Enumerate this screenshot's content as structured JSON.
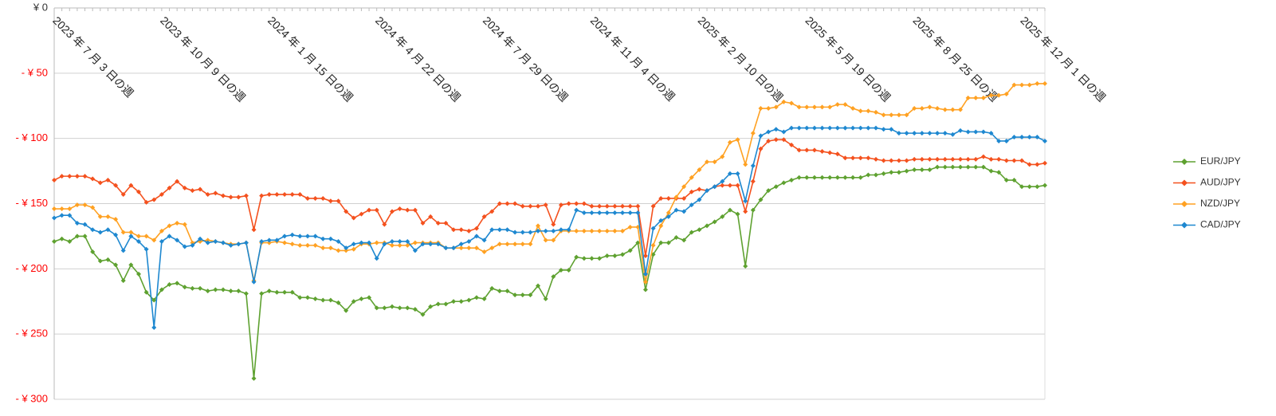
{
  "chart_data": {
    "type": "line",
    "categories": [
      "2023 年 7 月 3 日の週",
      null,
      null,
      null,
      null,
      null,
      null,
      null,
      null,
      null,
      null,
      null,
      null,
      null,
      "2023 年 10 月 9 日の週",
      null,
      null,
      null,
      null,
      null,
      null,
      null,
      null,
      null,
      null,
      null,
      null,
      null,
      "2024 年 1 月 15 日の週",
      null,
      null,
      null,
      null,
      null,
      null,
      null,
      null,
      null,
      null,
      null,
      null,
      null,
      "2024 年 4 月 22 日の週",
      null,
      null,
      null,
      null,
      null,
      null,
      null,
      null,
      null,
      null,
      null,
      null,
      null,
      "2024 年 7 月 29 日の週",
      null,
      null,
      null,
      null,
      null,
      null,
      null,
      null,
      null,
      null,
      null,
      null,
      null,
      "2024 年 11 月 4 日の週",
      null,
      null,
      null,
      null,
      null,
      null,
      null,
      null,
      null,
      null,
      null,
      null,
      null,
      "2025 年 2 月 10 日の週",
      null,
      null,
      null,
      null,
      null,
      null,
      null,
      null,
      null,
      null,
      null,
      null,
      null,
      "2025 年 5 月 19 日の週",
      null,
      null,
      null,
      null,
      null,
      null,
      null,
      null,
      null,
      null,
      null,
      null,
      null,
      "2025 年 8 月 25 日の週",
      null,
      null,
      null,
      null,
      null,
      null,
      null,
      null,
      null,
      null,
      null,
      null,
      null,
      "2025 年 12 月 1 日の週",
      null,
      null,
      null
    ],
    "series": [
      {
        "name": "EUR/JPY",
        "color": "#5ea130",
        "values": [
          -179,
          -177,
          -179,
          -175,
          -175,
          -187,
          -194,
          -193,
          -197,
          -209,
          -197,
          -204,
          -218,
          -224,
          -216,
          -212,
          -211,
          -214,
          -215,
          -215,
          -217,
          -216,
          -216,
          -217,
          -217,
          -219,
          -284,
          -219,
          -217,
          -218,
          -218,
          -218,
          -222,
          -222,
          -223,
          -224,
          -224,
          -226,
          -232,
          -225,
          -223,
          -222,
          -230,
          -230,
          -229,
          -230,
          -230,
          -231,
          -235,
          -229,
          -227,
          -227,
          -225,
          -225,
          -224,
          -222,
          -223,
          -215,
          -217,
          -217,
          -220,
          -220,
          -220,
          -213,
          -223,
          -206,
          -201,
          -201,
          -191,
          -192,
          -192,
          -192,
          -190,
          -190,
          -189,
          -186,
          -180,
          -216,
          -189,
          -180,
          -180,
          -176,
          -178,
          -172,
          -170,
          -167,
          -164,
          -160,
          -155,
          -158,
          -198,
          -155,
          -147,
          -140,
          -137,
          -134,
          -132,
          -130,
          -130,
          -130,
          -130,
          -130,
          -130,
          -130,
          -130,
          -130,
          -128,
          -128,
          -127,
          -126,
          -126,
          -125,
          -124,
          -124,
          -124,
          -122,
          -122,
          -122,
          -122,
          -122,
          -122,
          -122,
          -125,
          -126,
          -132,
          -132,
          -137,
          -137,
          -137,
          -136
        ]
      },
      {
        "name": "AUD/JPY",
        "color": "#f4511e",
        "values": [
          -132,
          -129,
          -129,
          -129,
          -129,
          -131,
          -134,
          -132,
          -136,
          -143,
          -136,
          -141,
          -149,
          -147,
          -143,
          -138,
          -133,
          -138,
          -140,
          -139,
          -143,
          -142,
          -144,
          -145,
          -145,
          -144,
          -170,
          -144,
          -143,
          -143,
          -143,
          -143,
          -143,
          -146,
          -146,
          -146,
          -148,
          -148,
          -156,
          -161,
          -158,
          -155,
          -155,
          -166,
          -156,
          -154,
          -155,
          -155,
          -165,
          -160,
          -165,
          -165,
          -170,
          -170,
          -171,
          -169,
          -160,
          -156,
          -150,
          -150,
          -150,
          -152,
          -152,
          -152,
          -151,
          -166,
          -151,
          -150,
          -150,
          -150,
          -152,
          -152,
          -152,
          -152,
          -152,
          -152,
          -152,
          -190,
          -152,
          -146,
          -146,
          -146,
          -146,
          -141,
          -139,
          -140,
          -137,
          -136,
          -136,
          -136,
          -156,
          -133,
          -108,
          -102,
          -101,
          -101,
          -105,
          -109,
          -109,
          -109,
          -110,
          -111,
          -112,
          -115,
          -115,
          -115,
          -115,
          -116,
          -117,
          -117,
          -117,
          -117,
          -116,
          -116,
          -116,
          -116,
          -116,
          -116,
          -116,
          -116,
          -116,
          -114,
          -116,
          -116,
          -117,
          -117,
          -117,
          -120,
          -120,
          -119
        ]
      },
      {
        "name": "NZD/JPY",
        "color": "#ffa122",
        "values": [
          -154,
          -154,
          -154,
          -151,
          -151,
          -153,
          -160,
          -160,
          -162,
          -172,
          -172,
          -175,
          -175,
          -178,
          -171,
          -167,
          -165,
          -166,
          -180,
          -179,
          -178,
          -179,
          -180,
          -181,
          -181,
          -180,
          -209,
          -180,
          -180,
          -179,
          -180,
          -181,
          -182,
          -182,
          -182,
          -184,
          -184,
          -186,
          -186,
          -185,
          -181,
          -181,
          -180,
          -180,
          -182,
          -182,
          -182,
          -180,
          -180,
          -180,
          -180,
          -184,
          -184,
          -184,
          -184,
          -184,
          -187,
          -184,
          -181,
          -181,
          -181,
          -181,
          -181,
          -167,
          -178,
          -178,
          -171,
          -171,
          -171,
          -171,
          -171,
          -171,
          -171,
          -171,
          -171,
          -168,
          -168,
          -210,
          -182,
          -167,
          -157,
          -145,
          -137,
          -130,
          -124,
          -118,
          -118,
          -114,
          -103,
          -101,
          -120,
          -96,
          -77,
          -77,
          -76,
          -72,
          -73,
          -76,
          -76,
          -76,
          -76,
          -76,
          -74,
          -74,
          -77,
          -79,
          -79,
          -80,
          -82,
          -82,
          -82,
          -82,
          -77,
          -77,
          -76,
          -77,
          -78,
          -78,
          -78,
          -69,
          -69,
          -69,
          -67,
          -67,
          -66,
          -59,
          -59,
          -59,
          -58,
          -58
        ]
      },
      {
        "name": "CAD/JPY",
        "color": "#1e88d0",
        "values": [
          -161,
          -159,
          -159,
          -165,
          -166,
          -170,
          -172,
          -170,
          -174,
          -186,
          -175,
          -179,
          -185,
          -245,
          -179,
          -175,
          -178,
          -183,
          -182,
          -177,
          -180,
          -179,
          -180,
          -182,
          -181,
          -180,
          -210,
          -179,
          -178,
          -178,
          -175,
          -174,
          -175,
          -175,
          -175,
          -177,
          -177,
          -179,
          -184,
          -181,
          -180,
          -180,
          -192,
          -181,
          -179,
          -179,
          -179,
          -186,
          -181,
          -181,
          -181,
          -184,
          -184,
          -181,
          -179,
          -175,
          -178,
          -170,
          -170,
          -170,
          -172,
          -172,
          -172,
          -171,
          -171,
          -171,
          -170,
          -170,
          -155,
          -157,
          -157,
          -157,
          -157,
          -157,
          -157,
          -157,
          -157,
          -204,
          -169,
          -163,
          -160,
          -155,
          -156,
          -151,
          -147,
          -140,
          -137,
          -133,
          -127,
          -127,
          -148,
          -121,
          -98,
          -95,
          -93,
          -95,
          -92,
          -92,
          -92,
          -92,
          -92,
          -92,
          -92,
          -92,
          -92,
          -92,
          -92,
          -92,
          -93,
          -93,
          -96,
          -96,
          -96,
          -96,
          -96,
          -96,
          -96,
          -97,
          -94,
          -95,
          -95,
          -95,
          -96,
          -102,
          -102,
          -99,
          -99,
          -99,
          -99,
          -102
        ]
      }
    ],
    "ylim": [
      -300,
      0
    ],
    "yticks": [
      {
        "value": 0,
        "label": "¥ 0"
      },
      {
        "value": -50,
        "label": "- ¥ 50"
      },
      {
        "value": -100,
        "label": "- ¥ 100"
      },
      {
        "value": -150,
        "label": "- ¥ 150"
      },
      {
        "value": -200,
        "label": "- ¥ 200"
      },
      {
        "value": -250,
        "label": "- ¥ 250"
      },
      {
        "value": -300,
        "label": "- ¥ 300"
      }
    ],
    "negative_tick_color": "#ff0000",
    "grid": true,
    "legend": "right"
  }
}
